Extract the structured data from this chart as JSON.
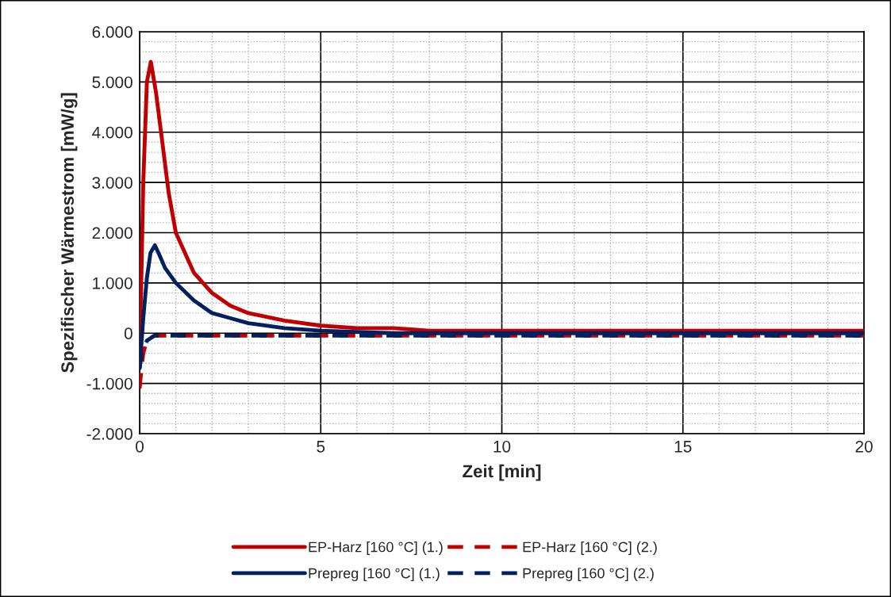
{
  "chart_data": {
    "type": "line",
    "xlabel": "Zeit [min]",
    "ylabel": "Spezifischer Wärmestrom [mW/g]",
    "xlim": [
      0,
      20
    ],
    "xticks": [
      0,
      5,
      10,
      15,
      20
    ],
    "ylim": [
      -2000,
      6000
    ],
    "yticks": [
      {
        "value": -2000,
        "label": "-2.000"
      },
      {
        "value": -1000,
        "label": "-1.000"
      },
      {
        "value": 0,
        "label": "0"
      },
      {
        "value": 1000,
        "label": "1.000"
      },
      {
        "value": 2000,
        "label": "2.000"
      },
      {
        "value": 3000,
        "label": "3.000"
      },
      {
        "value": 4000,
        "label": "4.000"
      },
      {
        "value": 5000,
        "label": "5.000"
      },
      {
        "value": 6000,
        "label": "6.000"
      }
    ],
    "grid": true,
    "legend": "bottom",
    "marker": "none",
    "series": [
      {
        "name": "EP-Harz [160 °C] (1.)",
        "color": "#c00000",
        "line_style": "solid",
        "x": [
          0,
          0.05,
          0.1,
          0.2,
          0.31,
          0.45,
          0.6,
          0.8,
          1.0,
          1.5,
          2,
          2.5,
          3,
          4,
          5,
          6,
          7,
          8,
          10,
          12,
          15,
          20
        ],
        "values": [
          -350,
          1200,
          3000,
          5000,
          5400,
          4800,
          3950,
          2800,
          2000,
          1200,
          800,
          550,
          400,
          250,
          150,
          100,
          100,
          50,
          50,
          50,
          50,
          50
        ]
      },
      {
        "name": "EP-Harz [160 °C] (2.)",
        "color": "#c00000",
        "line_style": "dashed",
        "x": [
          0,
          0.05,
          0.1,
          0.2,
          0.4,
          1,
          2,
          5,
          10,
          15,
          20
        ],
        "values": [
          -1100,
          -700,
          -400,
          -150,
          -50,
          -50,
          -50,
          -50,
          -50,
          -50,
          -50
        ]
      },
      {
        "name": "Prepreg [160 °C] (1.)",
        "color": "#002060",
        "line_style": "solid",
        "x": [
          0,
          0.1,
          0.2,
          0.3,
          0.42,
          0.55,
          0.7,
          1.0,
          1.5,
          2,
          2.5,
          3,
          4,
          5,
          7,
          10,
          15,
          20
        ],
        "values": [
          -700,
          300,
          1100,
          1600,
          1750,
          1550,
          1300,
          1000,
          650,
          400,
          300,
          200,
          100,
          50,
          0,
          0,
          0,
          0
        ]
      },
      {
        "name": "Prepreg [160 °C] (2.)",
        "color": "#002060",
        "line_style": "dashed",
        "x": [
          0,
          0.05,
          0.1,
          0.2,
          0.4,
          1,
          2,
          5,
          10,
          15,
          20
        ],
        "values": [
          -700,
          -450,
          -300,
          -150,
          -50,
          -50,
          -50,
          -50,
          -50,
          -50,
          -50
        ]
      }
    ]
  }
}
